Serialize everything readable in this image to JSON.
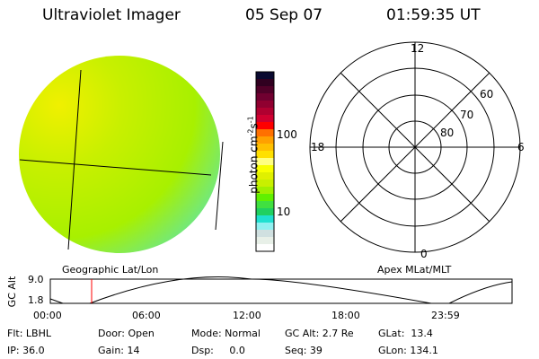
{
  "header": {
    "title": "Ultraviolet Imager",
    "date": "05 Sep 07",
    "time": "01:59:35 UT"
  },
  "image_panel": {
    "label": "Geographic Lat/Lon",
    "dominant_colors": [
      "#c8f000",
      "#a0f000",
      "#e0f000",
      "#60f000"
    ]
  },
  "colorbar": {
    "unit": "photon cm",
    "exp1": "-2",
    "unit2": "s",
    "exp2": "-1",
    "ticks": [
      "100",
      "10"
    ],
    "colors": [
      "#0a0a30",
      "#300020",
      "#500028",
      "#700030",
      "#900030",
      "#b00030",
      "#d00030",
      "#ff0000",
      "#ff7000",
      "#ffa000",
      "#ffc000",
      "#ffe000",
      "#ffff80",
      "#f8ff00",
      "#e0f000",
      "#c8f000",
      "#a0f000",
      "#60f000",
      "#40e040",
      "#20d060",
      "#20e0d0",
      "#90f0f0",
      "#d0e0e0",
      "#e8f0e8",
      "#ffffff"
    ]
  },
  "polar": {
    "label": "Apex MLat/MLT",
    "mlt": [
      "12",
      "18",
      "6",
      "0"
    ],
    "lat": [
      "80",
      "70",
      "60"
    ]
  },
  "alt_plot": {
    "ylabel": "GC Alt",
    "yticks": [
      "9.0",
      "1.8"
    ],
    "xticks": [
      "00:00",
      "06:00",
      "12:00",
      "18:00",
      "23:59"
    ],
    "marker_color": "#ff0000",
    "marker_time": "01:59"
  },
  "status": {
    "flt": "Flt: LBHL",
    "ip": "IP: 36.0",
    "door": "Door: Open",
    "gain": "Gain: 14",
    "mode": "Mode: Normal",
    "dsp": "Dsp:     0.0",
    "gcalt": "GC Alt: 2.7 Re",
    "seq": "Seq: 39",
    "glat": "GLat:  13.4",
    "glon": "GLon: 134.1"
  }
}
